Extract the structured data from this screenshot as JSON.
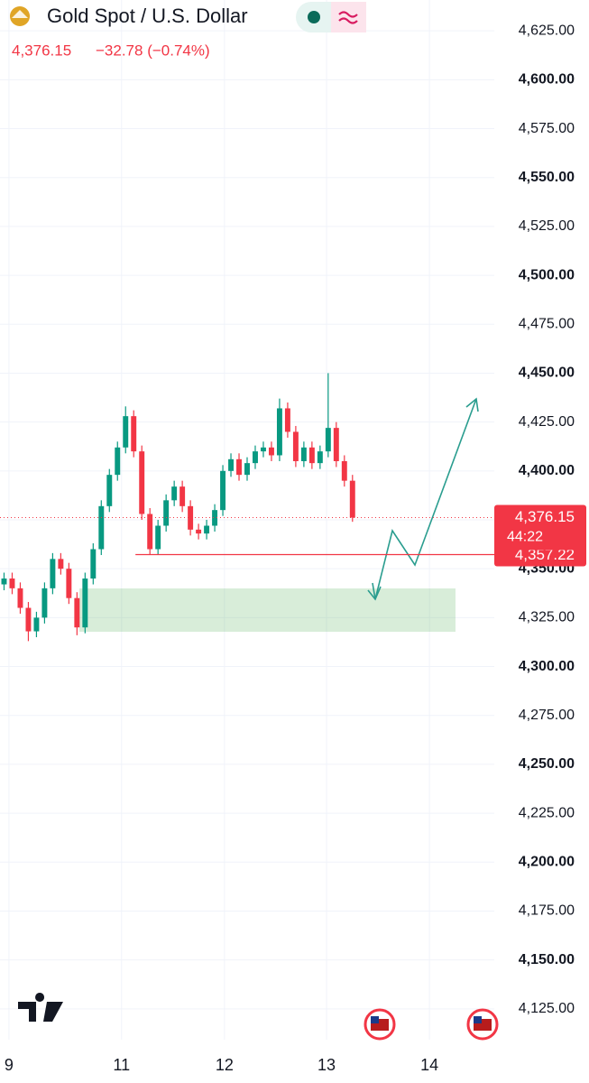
{
  "chart_data": {
    "type": "candlestick",
    "title": "Gold Spot / U.S. Dollar",
    "last": {
      "value": 4376.15,
      "label": "4,376.15"
    },
    "change_label": "−32.78 (−0.74%)",
    "countdown": "44:22",
    "up_color": "#089981",
    "down_color": "#f23645",
    "x": [
      0,
      1,
      2,
      3,
      4,
      5,
      6,
      7,
      8,
      9,
      10,
      11,
      12,
      13,
      14,
      15,
      16,
      17,
      18,
      19,
      20,
      21,
      22,
      23,
      24,
      25,
      26,
      27,
      28,
      29,
      30,
      31,
      32,
      33,
      34,
      35,
      36,
      37,
      38,
      39,
      40,
      41,
      42,
      43
    ],
    "open": [
      4342,
      4345,
      4340,
      4330,
      4318,
      4325,
      4340,
      4355,
      4350,
      4335,
      4320,
      4345,
      4360,
      4382,
      4398,
      4412,
      4428,
      4410,
      4378,
      4360,
      4372,
      4385,
      4392,
      4382,
      4370,
      4368,
      4372,
      4380,
      4400,
      4406,
      4398,
      4404,
      4410,
      4412,
      4408,
      4432,
      4420,
      4405,
      4412,
      4404,
      4410,
      4422,
      4405,
      4395
    ],
    "high": [
      4348,
      4348,
      4343,
      4333,
      4328,
      4343,
      4358,
      4358,
      4353,
      4338,
      4348,
      4363,
      4385,
      4401,
      4415,
      4433,
      4431,
      4413,
      4381,
      4375,
      4388,
      4395,
      4395,
      4385,
      4373,
      4375,
      4383,
      4403,
      4409,
      4409,
      4407,
      4413,
      4415,
      4415,
      4437,
      4435,
      4423,
      4415,
      4415,
      4413,
      4450,
      4425,
      4408,
      4398
    ],
    "low": [
      4339,
      4337,
      4327,
      4313,
      4315,
      4322,
      4337,
      4347,
      4332,
      4316,
      4317,
      4342,
      4357,
      4379,
      4395,
      4409,
      4407,
      4375,
      4357,
      4357,
      4369,
      4382,
      4379,
      4367,
      4365,
      4365,
      4369,
      4377,
      4397,
      4395,
      4395,
      4401,
      4407,
      4405,
      4405,
      4417,
      4402,
      4402,
      4401,
      4401,
      4407,
      4402,
      4392,
      4374
    ],
    "close": [
      4345,
      4340,
      4330,
      4318,
      4325,
      4340,
      4355,
      4350,
      4335,
      4320,
      4345,
      4360,
      4382,
      4398,
      4412,
      4428,
      4410,
      4378,
      4360,
      4372,
      4385,
      4392,
      4382,
      4370,
      4368,
      4372,
      4380,
      4400,
      4406,
      4398,
      4404,
      4410,
      4412,
      4408,
      4432,
      4420,
      4405,
      4412,
      4404,
      4410,
      4422,
      4405,
      4395,
      4376.15
    ],
    "horizontal_line": {
      "value": 4357.22,
      "label": "4,357.22"
    },
    "xlim": [
      -0.5,
      60.5
    ],
    "xticks": [
      {
        "value": 0.6,
        "label": "9"
      },
      {
        "value": 14.5,
        "label": "11"
      },
      {
        "value": 27.2,
        "label": "12"
      },
      {
        "value": 39.8,
        "label": "13"
      },
      {
        "value": 52.5,
        "label": "14"
      }
    ],
    "ylim": [
      4109.23,
      4640.77
    ],
    "yticks": [
      {
        "value": 4125,
        "label": "4,125.00"
      },
      {
        "value": 4150,
        "label": "4,150.00"
      },
      {
        "value": 4175,
        "label": "4,175.00"
      },
      {
        "value": 4200,
        "label": "4,200.00"
      },
      {
        "value": 4225,
        "label": "4,225.00"
      },
      {
        "value": 4250,
        "label": "4,250.00"
      },
      {
        "value": 4275,
        "label": "4,275.00"
      },
      {
        "value": 4300,
        "label": "4,300.00"
      },
      {
        "value": 4325,
        "label": "4,325.00"
      },
      {
        "value": 4350,
        "label": "4,350.00"
      },
      {
        "value": 4375,
        "label": "4,375.00"
      },
      {
        "value": 4400,
        "label": "4,400.00"
      },
      {
        "value": 4425,
        "label": "4,425.00"
      },
      {
        "value": 4450,
        "label": "4,450.00"
      },
      {
        "value": 4475,
        "label": "4,475.00"
      },
      {
        "value": 4500,
        "label": "4,500.00"
      },
      {
        "value": 4525,
        "label": "4,525.00"
      },
      {
        "value": 4550,
        "label": "4,550.00"
      },
      {
        "value": 4575,
        "label": "4,575.00"
      },
      {
        "value": 4600,
        "label": "4,600.00"
      },
      {
        "value": 4625,
        "label": "4,625.00"
      }
    ],
    "grid": true
  }
}
